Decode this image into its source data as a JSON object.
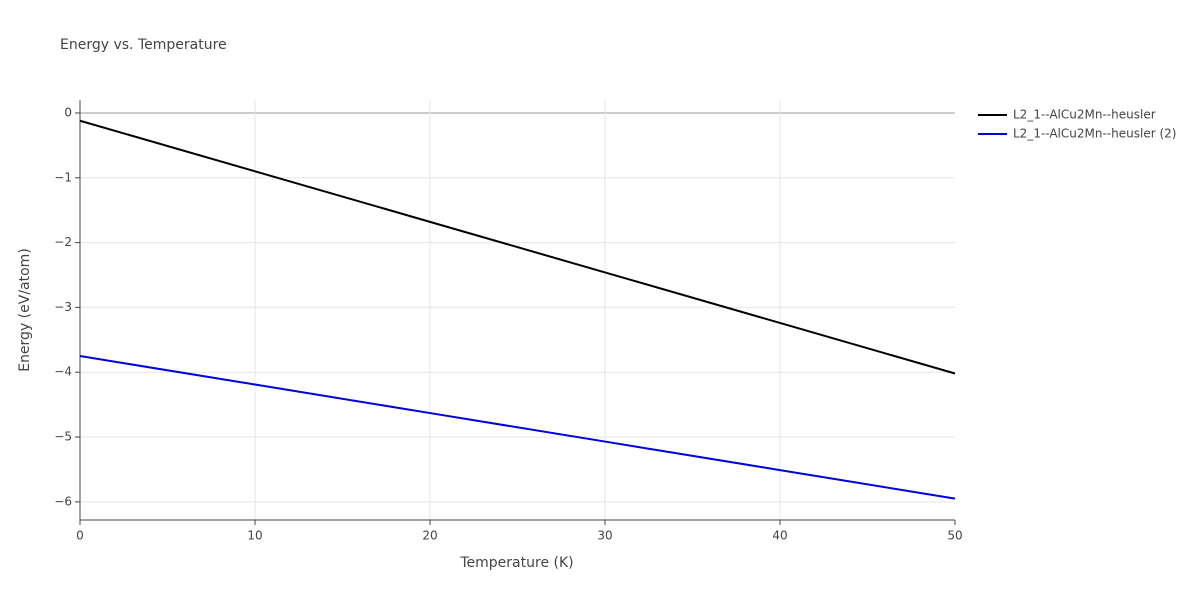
{
  "chart_data": {
    "type": "line",
    "title": "Energy vs. Temperature",
    "x_label": "Temperature (K)",
    "y_label": "Energy (eV/atom)",
    "x": [
      0,
      10,
      20,
      30,
      40,
      50
    ],
    "series": [
      {
        "name": "L2_1--AlCu2Mn--heusler",
        "color": "#000000",
        "values": [
          -0.12,
          -0.9,
          -1.68,
          -2.46,
          -3.24,
          -4.02
        ]
      },
      {
        "name": "L2_1--AlCu2Mn--heusler (2)",
        "color": "#0000dd",
        "values": [
          -3.75,
          -4.19,
          -4.63,
          -5.07,
          -5.51,
          -5.95
        ]
      }
    ],
    "xlim": [
      0,
      50
    ],
    "xticks": [
      0,
      10,
      20,
      30,
      40,
      50
    ],
    "ylim": [
      -6.28,
      0.2
    ],
    "yticks": [
      0,
      {
        "value": -1,
        "label": "−1"
      },
      {
        "value": -2,
        "label": "−2"
      },
      {
        "value": -3,
        "label": "−3"
      },
      {
        "value": -4,
        "label": "−4"
      },
      {
        "value": -5,
        "label": "−5"
      },
      {
        "value": -6,
        "label": "−6"
      }
    ],
    "grid": true,
    "legend": "right"
  }
}
